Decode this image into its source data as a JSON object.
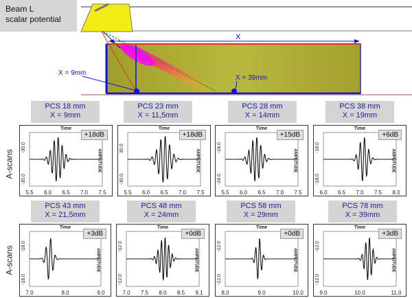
{
  "title": {
    "line1": "Beam L",
    "line2": "scalar potential"
  },
  "top": {
    "x_label": "X",
    "left_marker": "X = 9mm",
    "right_marker": "X = 39mm"
  },
  "row_labels": {
    "row1": "A-scans",
    "row2": "A-scans"
  },
  "colors": {
    "label_text": "#1d1d9c",
    "label_bg": "#d4d4d4",
    "block": "#b8b848",
    "marker": "#1010e0"
  },
  "row1": [
    {
      "pcs": "PCS 18 mm",
      "x": "X = 9mm",
      "gain": "+18dB",
      "ymax": "-30.0",
      "ymin": "-30.0",
      "xticks": [
        "5.5",
        "6.0",
        "6.5",
        "7.0",
        "7.5"
      ],
      "time": "Time",
      "amp": "AMPLITUDE"
    },
    {
      "pcs": "PCS 23 mm",
      "x": "X = 11,5mm",
      "gain": "+18dB",
      "ymax": "30.0",
      "ymin": "-30.0",
      "xticks": [
        "5.5",
        "6.0",
        "6.5",
        "7.0",
        "7.5"
      ],
      "time": "Time",
      "amp": "AMPLITUDE"
    },
    {
      "pcs": "PCS 28 mm",
      "x": "X = 14mm",
      "gain": "+15dB",
      "ymax": "-24.0",
      "ymin": "-24.0",
      "xticks": [
        "5.5",
        "6.0",
        "6.5",
        "7.0",
        "7.5"
      ],
      "time": "Time",
      "amp": "AMPLITUDE"
    },
    {
      "pcs": "PCS 38 mm",
      "x": "X = 19mm",
      "gain": "+6dB",
      "ymax": "-18.0",
      "ymin": "-18.0",
      "xticks": [
        "6.0",
        "6.5",
        "7.0",
        "7.5",
        "8.0"
      ],
      "time": "Time",
      "amp": "AMPLITUDE"
    }
  ],
  "row2": [
    {
      "pcs": "PCS 43 mm",
      "x": "X = 21,5mm",
      "gain": "+3dB",
      "ymax": "-18.0",
      "ymin": "-18.0",
      "xticks": [
        "7.0",
        "8.0",
        "9.0"
      ],
      "time": "Time",
      "amp": "AMPLITUDE"
    },
    {
      "pcs": "PCS 48 mm",
      "x": "X = 24mm",
      "gain": "+0dB",
      "ymax": "-12.0",
      "ymin": "-12.0",
      "xticks": [
        "7.0",
        "7.5",
        "8.0",
        "8.5",
        "9.1"
      ],
      "time": "Time",
      "amp": "AMPLITUDE"
    },
    {
      "pcs": "PCS 58 mm",
      "x": "X = 29mm",
      "gain": "+0dB",
      "ymax": "-12.0",
      "ymin": "-12.0",
      "xticks": [
        "8.0",
        "9.0",
        "10.0"
      ],
      "time": "Time",
      "amp": "AMPLITUDE"
    },
    {
      "pcs": "PCS 78 mm",
      "x": "X = 39mm",
      "gain": "+3dB",
      "ymax": "-12.0",
      "ymin": "-12.0",
      "xticks": [
        "9.0",
        "10.0",
        "11.0"
      ],
      "time": "Time",
      "amp": "AMPLITUDE"
    }
  ]
}
